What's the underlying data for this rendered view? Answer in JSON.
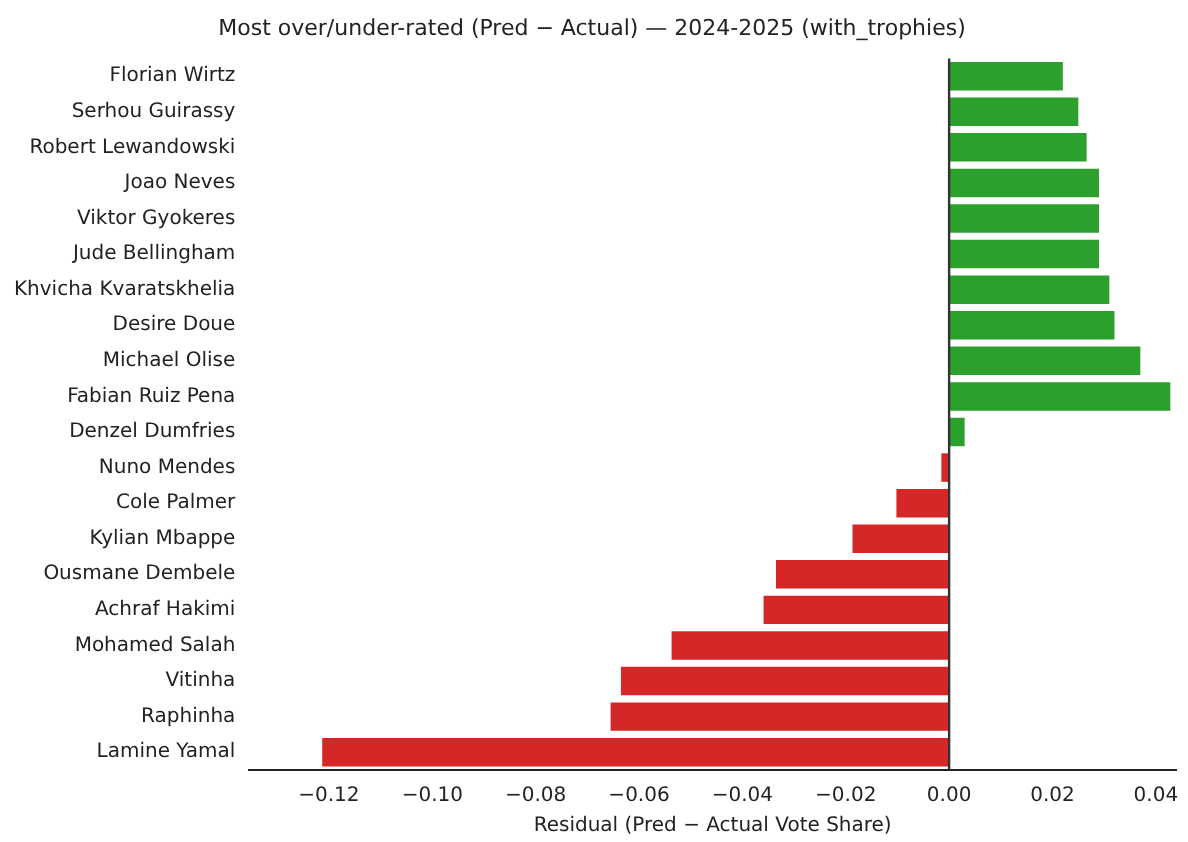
{
  "chart_data": {
    "type": "bar",
    "orientation": "horizontal",
    "title": "Most over/under-rated (Pred − Actual) — 2024-2025 (with_trophies)",
    "xlabel": "Residual (Pred − Actual Vote Share)",
    "categories": [
      "Florian Wirtz",
      "Serhou Guirassy",
      "Robert Lewandowski",
      "Joao Neves",
      "Viktor Gyokeres",
      "Jude Bellingham",
      "Khvicha Kvaratskhelia",
      "Desire Doue",
      "Michael Olise",
      "Fabian Ruiz Pena",
      "Denzel Dumfries",
      "Nuno Mendes",
      "Cole Palmer",
      "Kylian Mbappe",
      "Ousmane Dembele",
      "Achraf Hakimi",
      "Mohamed Salah",
      "Vitinha",
      "Raphinha",
      "Lamine Yamal"
    ],
    "values": [
      0.022,
      0.025,
      0.0266,
      0.029,
      0.029,
      0.029,
      0.031,
      0.032,
      0.037,
      0.0428,
      0.003,
      -0.0015,
      -0.0102,
      -0.0187,
      -0.0335,
      -0.0359,
      -0.0537,
      -0.0635,
      -0.0655,
      -0.1213
    ],
    "colors": [
      "#2ca02c",
      "#2ca02c",
      "#2ca02c",
      "#2ca02c",
      "#2ca02c",
      "#2ca02c",
      "#2ca02c",
      "#2ca02c",
      "#2ca02c",
      "#2ca02c",
      "#2ca02c",
      "#d62728",
      "#d62728",
      "#d62728",
      "#d62728",
      "#d62728",
      "#d62728",
      "#d62728",
      "#d62728",
      "#d62728"
    ],
    "xlim": [
      -0.1354,
      0.0439
    ],
    "xticks": [
      {
        "value": -0.12,
        "label": "−0.12"
      },
      {
        "value": -0.1,
        "label": "−0.10"
      },
      {
        "value": -0.08,
        "label": "−0.08"
      },
      {
        "value": -0.06,
        "label": "−0.06"
      },
      {
        "value": -0.04,
        "label": "−0.04"
      },
      {
        "value": -0.02,
        "label": "−0.02"
      },
      {
        "value": 0,
        "label": "0.00"
      },
      {
        "value": 0.02,
        "label": "0.02"
      },
      {
        "value": 0.04,
        "label": "0.04"
      }
    ],
    "ref_lines": [
      {
        "axis": "x",
        "value": 0,
        "color": "#333333"
      }
    ],
    "grid": false,
    "legend": false
  }
}
